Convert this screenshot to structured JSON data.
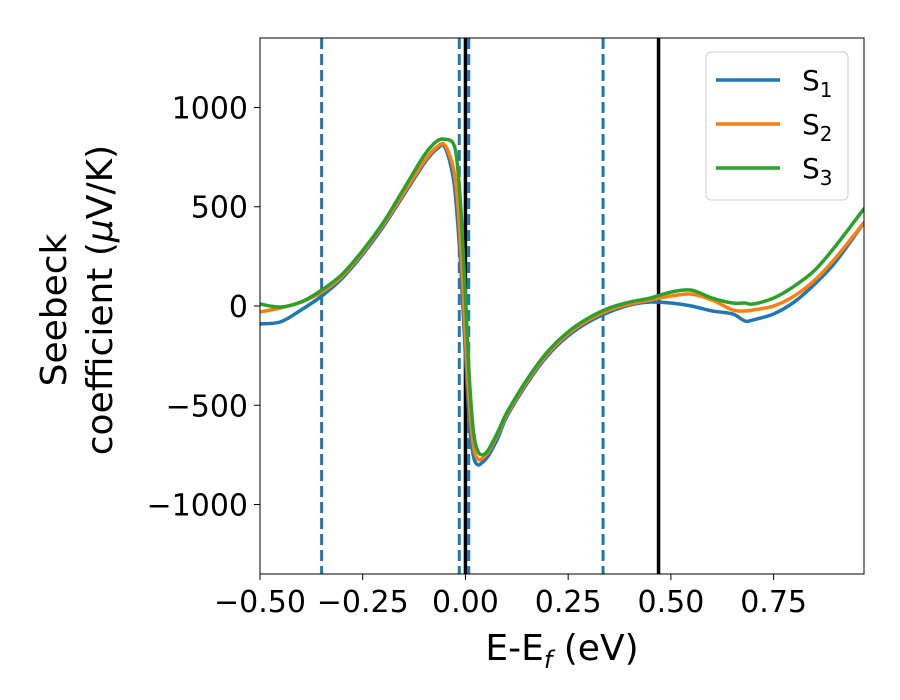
{
  "chart_data": {
    "type": "line",
    "xlabel": {
      "main": "E-E",
      "sub": "f",
      "suffix": " (eV)"
    },
    "ylabel": {
      "line1": "Seebeck",
      "line2_main": "coefficient  (",
      "line2_mu": "μ",
      "line2_suffix": "V/K)"
    },
    "xlim": [
      -0.5,
      0.97
    ],
    "ylim": [
      -1350,
      1350
    ],
    "xticks": [
      -0.5,
      -0.25,
      0.0,
      0.25,
      0.5,
      0.75
    ],
    "xtick_labels": [
      "−0.50",
      "−0.25",
      "0.00",
      "0.25",
      "0.50",
      "0.75"
    ],
    "yticks": [
      -1000,
      -500,
      0,
      500,
      1000
    ],
    "ytick_labels": [
      "−1000",
      "−500",
      "0",
      "500",
      "1000"
    ],
    "grid": false,
    "legend_position": "top-right",
    "series": [
      {
        "name": "S",
        "name_sub": "1",
        "color": "#1f77b4",
        "x": [
          -0.5,
          -0.45,
          -0.4,
          -0.35,
          -0.3,
          -0.25,
          -0.2,
          -0.15,
          -0.1,
          -0.07,
          -0.05,
          -0.03,
          -0.02,
          -0.01,
          0.0,
          0.01,
          0.02,
          0.03,
          0.04,
          0.05,
          0.06,
          0.08,
          0.1,
          0.15,
          0.2,
          0.25,
          0.3,
          0.35,
          0.4,
          0.45,
          0.5,
          0.55,
          0.6,
          0.65,
          0.68,
          0.7,
          0.75,
          0.8,
          0.85,
          0.9,
          0.97
        ],
        "y": [
          -90,
          -80,
          -20,
          50,
          140,
          260,
          400,
          560,
          720,
          790,
          800,
          650,
          450,
          150,
          -250,
          -600,
          -760,
          -800,
          -790,
          -770,
          -740,
          -660,
          -560,
          -390,
          -250,
          -150,
          -80,
          -30,
          5,
          20,
          15,
          0,
          -25,
          -40,
          -75,
          -70,
          -40,
          20,
          110,
          220,
          420
        ]
      },
      {
        "name": "S",
        "name_sub": "2",
        "color": "#ff7f0e",
        "x": [
          -0.5,
          -0.45,
          -0.4,
          -0.35,
          -0.3,
          -0.25,
          -0.2,
          -0.15,
          -0.1,
          -0.07,
          -0.05,
          -0.03,
          -0.02,
          -0.01,
          0.0,
          0.01,
          0.02,
          0.03,
          0.04,
          0.05,
          0.06,
          0.08,
          0.1,
          0.15,
          0.2,
          0.25,
          0.3,
          0.35,
          0.4,
          0.45,
          0.5,
          0.55,
          0.6,
          0.65,
          0.68,
          0.7,
          0.75,
          0.8,
          0.85,
          0.9,
          0.97
        ],
        "y": [
          -30,
          -10,
          20,
          70,
          150,
          270,
          410,
          570,
          730,
          800,
          810,
          700,
          550,
          250,
          -150,
          -500,
          -710,
          -770,
          -770,
          -750,
          -720,
          -640,
          -550,
          -380,
          -240,
          -140,
          -70,
          -20,
          10,
          30,
          50,
          60,
          30,
          -20,
          -25,
          -20,
          0,
          50,
          130,
          240,
          420
        ]
      },
      {
        "name": "S",
        "name_sub": "3",
        "color": "#2ca02c",
        "x": [
          -0.5,
          -0.45,
          -0.4,
          -0.35,
          -0.3,
          -0.25,
          -0.2,
          -0.15,
          -0.1,
          -0.07,
          -0.05,
          -0.03,
          -0.02,
          -0.01,
          0.0,
          0.01,
          0.02,
          0.03,
          0.04,
          0.05,
          0.06,
          0.08,
          0.1,
          0.15,
          0.2,
          0.25,
          0.3,
          0.35,
          0.4,
          0.45,
          0.5,
          0.55,
          0.6,
          0.65,
          0.68,
          0.7,
          0.75,
          0.8,
          0.85,
          0.9,
          0.97
        ],
        "y": [
          10,
          -5,
          20,
          80,
          160,
          280,
          420,
          590,
          760,
          830,
          840,
          820,
          720,
          450,
          50,
          -380,
          -640,
          -730,
          -750,
          -740,
          -710,
          -630,
          -540,
          -370,
          -230,
          -130,
          -60,
          -10,
          20,
          40,
          70,
          80,
          40,
          15,
          15,
          10,
          40,
          100,
          180,
          300,
          490
        ]
      }
    ],
    "vlines": [
      {
        "x": -0.35,
        "color": "#1f77b4",
        "style": "dashed"
      },
      {
        "x": -0.015,
        "color": "#1f77b4",
        "style": "dashed"
      },
      {
        "x": 0.008,
        "color": "#1f77b4",
        "style": "dashed"
      },
      {
        "x": 0.335,
        "color": "#1f77b4",
        "style": "dashed"
      },
      {
        "x": 0.0,
        "color": "#000000",
        "style": "solid"
      },
      {
        "x": 0.47,
        "color": "#000000",
        "style": "solid"
      }
    ]
  }
}
